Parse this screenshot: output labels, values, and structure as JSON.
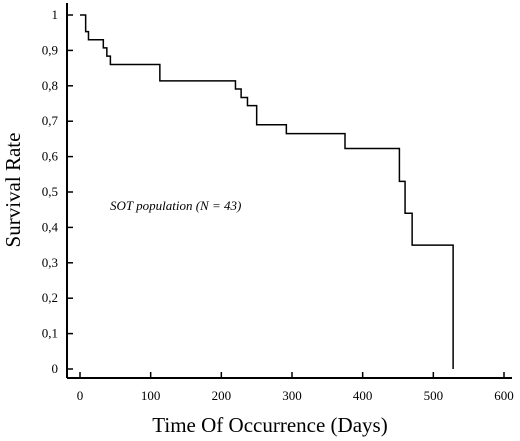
{
  "chart_data": {
    "type": "line",
    "title": "",
    "xlabel": "Time Of Occurrence (Days)",
    "ylabel": "Survival Rate",
    "xlim": [
      0,
      600
    ],
    "ylim": [
      0,
      1
    ],
    "x_ticks": [
      "0",
      "100",
      "200",
      "300",
      "400",
      "500",
      "600"
    ],
    "y_ticks": [
      "0",
      "0,1",
      "0,2",
      "0,3",
      "0,4",
      "0,5",
      "0,6",
      "0,7",
      "0,8",
      "0,9",
      "1"
    ],
    "annotation": "SOT population (N = 43)",
    "grid": false,
    "legend": "none",
    "series": [
      {
        "step": true,
        "x": [
          0,
          8,
          12,
          25,
          33,
          38,
          43,
          108,
          113,
          205,
          220,
          228,
          237,
          250,
          292,
          375,
          445,
          452,
          460,
          470,
          528,
          528
        ],
        "y": [
          1,
          0.953,
          0.93,
          0.93,
          0.907,
          0.884,
          0.86,
          0.86,
          0.814,
          0.814,
          0.791,
          0.767,
          0.744,
          0.69,
          0.665,
          0.623,
          0.623,
          0.53,
          0.44,
          0.35,
          0.35,
          0
        ]
      }
    ]
  }
}
